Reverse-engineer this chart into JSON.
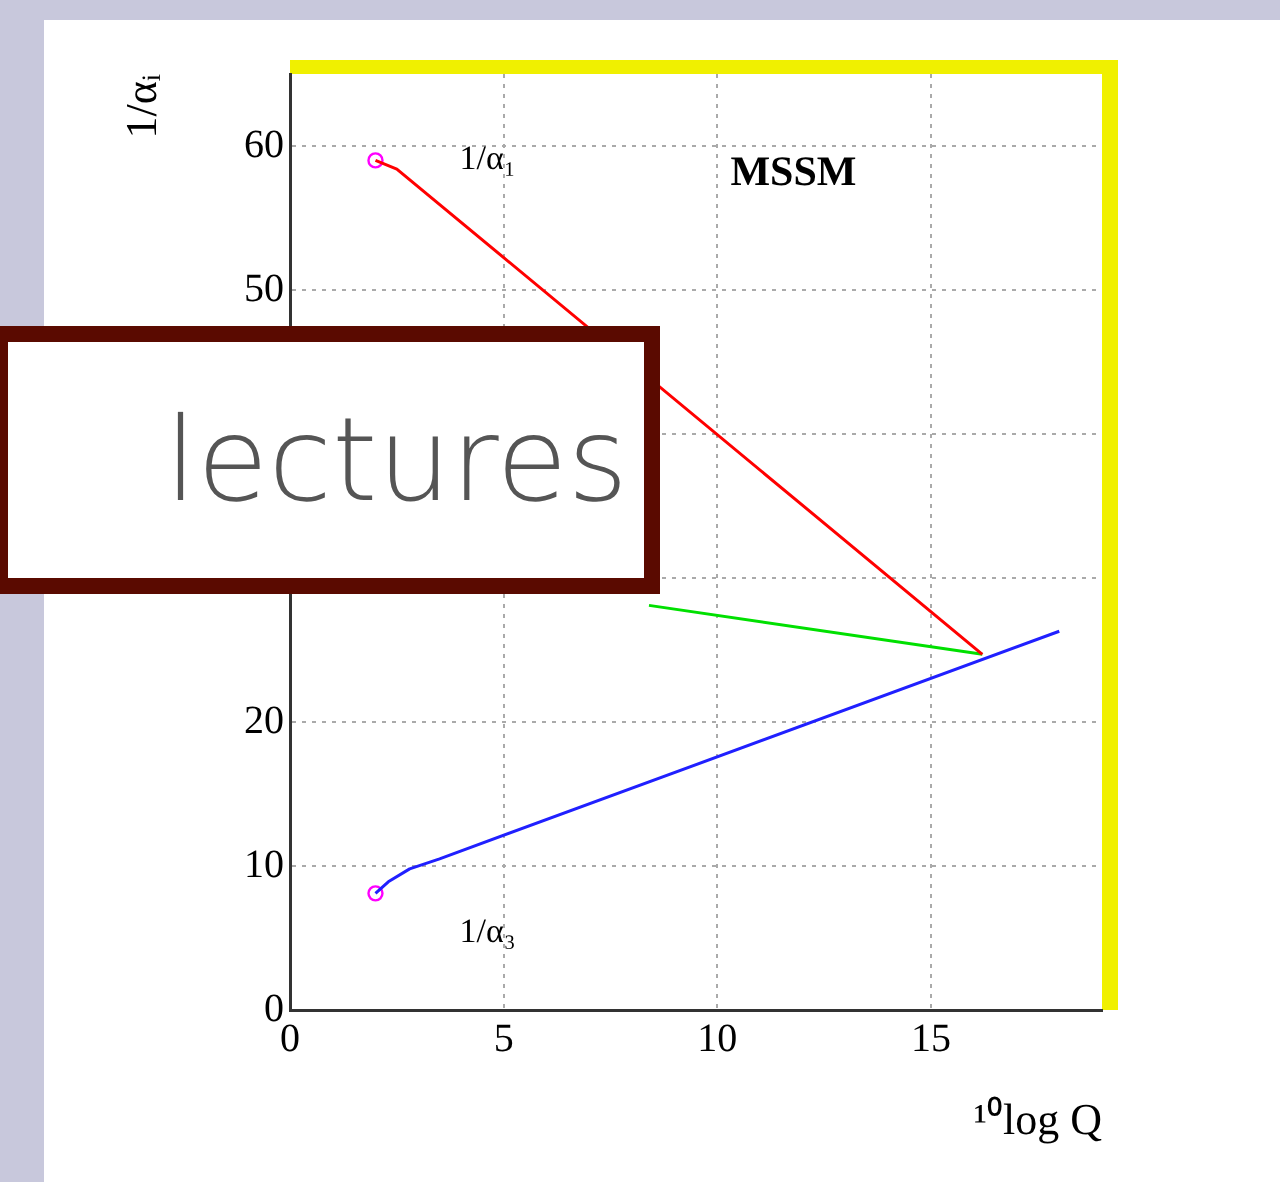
{
  "chart_data": {
    "type": "line",
    "xlabel": "¹⁰log Q",
    "ylabel": "1/αᵢ",
    "annotations": [
      "MSSM",
      "lectures"
    ],
    "xlim": [
      0,
      19
    ],
    "ylim": [
      0,
      65
    ],
    "xticks": [
      0,
      5,
      10,
      15
    ],
    "yticks": [
      0,
      10,
      20,
      {
        "value": 30,
        "label": null
      },
      {
        "value": 40,
        "label": null
      },
      50,
      60
    ],
    "grid": true,
    "marker": "none",
    "line_style": "solid",
    "series": [
      {
        "name": "1/α₁",
        "color": "#ff0000",
        "x": [
          2,
          2.5,
          16.2
        ],
        "values": [
          59,
          58.4,
          24.7
        ]
      },
      {
        "color": "#00e000",
        "x": [
          8.4,
          16.2
        ],
        "values": [
          28.1,
          24.7
        ]
      },
      {
        "name": "1/α₃",
        "color": "#2020ff",
        "x": [
          2,
          2.3,
          2.8,
          3.5,
          18
        ],
        "values": [
          8.1,
          8.9,
          9.8,
          10.5,
          26.3
        ]
      },
      {
        "type": "scatter",
        "marker": "circle",
        "color": "#ff00ff",
        "x": [
          2,
          2
        ],
        "values": [
          59,
          8.1
        ]
      }
    ]
  }
}
